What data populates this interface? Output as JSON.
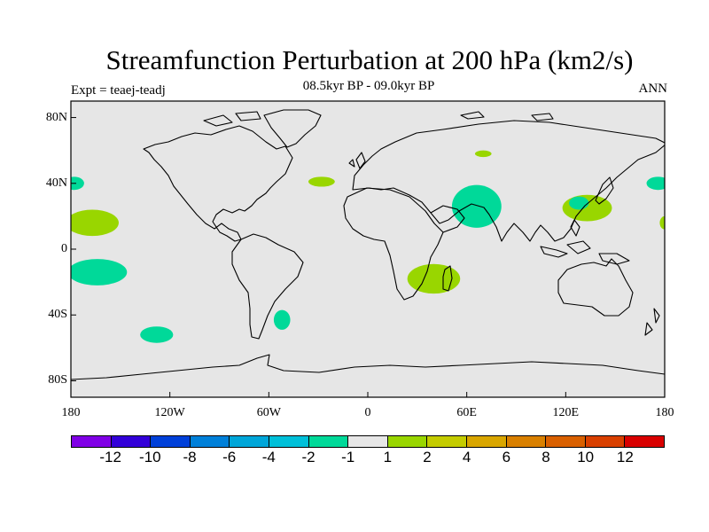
{
  "title": "Streamfunction Perturbation at 200 hPa (km2/s)",
  "subtitle": "08.5kyr BP - 09.0kyr BP",
  "experiment": "Expt = teaej-teadj",
  "season": "ANN",
  "map": {
    "background": "#e6e6e6",
    "lon_range": [
      -180,
      180
    ],
    "lat_range": [
      -90,
      90
    ],
    "lat_labels": [
      {
        "text": "80N",
        "lat": 80
      },
      {
        "text": "40N",
        "lat": 40
      },
      {
        "text": "0",
        "lat": 0
      },
      {
        "text": "40S",
        "lat": -40
      },
      {
        "text": "80S",
        "lat": -80
      }
    ],
    "lon_labels": [
      {
        "text": "180",
        "lon": -180
      },
      {
        "text": "120W",
        "lon": -120
      },
      {
        "text": "60W",
        "lon": -60
      },
      {
        "text": "0",
        "lon": 0
      },
      {
        "text": "60E",
        "lon": 60
      },
      {
        "text": "120E",
        "lon": 120
      },
      {
        "text": "180",
        "lon": 180
      }
    ],
    "anomalies": [
      {
        "name": "npac-west",
        "lon": -167,
        "lat": 16,
        "rlon": 16,
        "rlat": 8,
        "color": "#99d600"
      },
      {
        "name": "npac-edge",
        "lon": -178,
        "lat": 40,
        "rlon": 6,
        "rlat": 4,
        "color": "#00d999"
      },
      {
        "name": "spac-west",
        "lon": -164,
        "lat": -14,
        "rlon": 18,
        "rlat": 8,
        "color": "#00d999"
      },
      {
        "name": "spac-south",
        "lon": -128,
        "lat": -52,
        "rlon": 10,
        "rlat": 5,
        "color": "#00d999"
      },
      {
        "name": "atl-patagonia",
        "lon": -52,
        "lat": -43,
        "rlon": 5,
        "rlat": 6,
        "color": "#00d999"
      },
      {
        "name": "atl-north",
        "lon": -28,
        "lat": 41,
        "rlon": 8,
        "rlat": 3,
        "color": "#99d600"
      },
      {
        "name": "central-asia",
        "lon": 70,
        "lat": 58,
        "rlon": 5,
        "rlat": 2,
        "color": "#99d600"
      },
      {
        "name": "arabia-india",
        "lon": 66,
        "lat": 26,
        "rlon": 15,
        "rlat": 13,
        "color": "#00d999"
      },
      {
        "name": "madagascar",
        "lon": 40,
        "lat": -18,
        "rlon": 16,
        "rlat": 9,
        "color": "#99d600"
      },
      {
        "name": "east-asia",
        "lon": 133,
        "lat": 25,
        "rlon": 15,
        "rlat": 8,
        "color": "#99d600"
      },
      {
        "name": "east-asia-inner",
        "lon": 128,
        "lat": 28,
        "rlon": 6,
        "rlat": 4,
        "color": "#00d999"
      },
      {
        "name": "npac-east",
        "lon": 176,
        "lat": 40,
        "rlon": 7,
        "rlat": 4,
        "color": "#00d999"
      },
      {
        "name": "pac-dateline",
        "lon": 180,
        "lat": 16,
        "rlon": 3,
        "rlat": 4,
        "color": "#99d600"
      }
    ]
  },
  "colorbar": {
    "colors": [
      "#8000e6",
      "#3300d9",
      "#0040d9",
      "#0080d9",
      "#00a6d9",
      "#00c0d9",
      "#00d999",
      "#e6e6e6",
      "#99d600",
      "#c4cc00",
      "#d9a600",
      "#d98000",
      "#d96000",
      "#d94000",
      "#d90000"
    ],
    "labels": [
      "-12",
      "-10",
      "-8",
      "-6",
      "-4",
      "-2",
      "-1",
      "1",
      "2",
      "4",
      "6",
      "8",
      "10",
      "12"
    ]
  }
}
